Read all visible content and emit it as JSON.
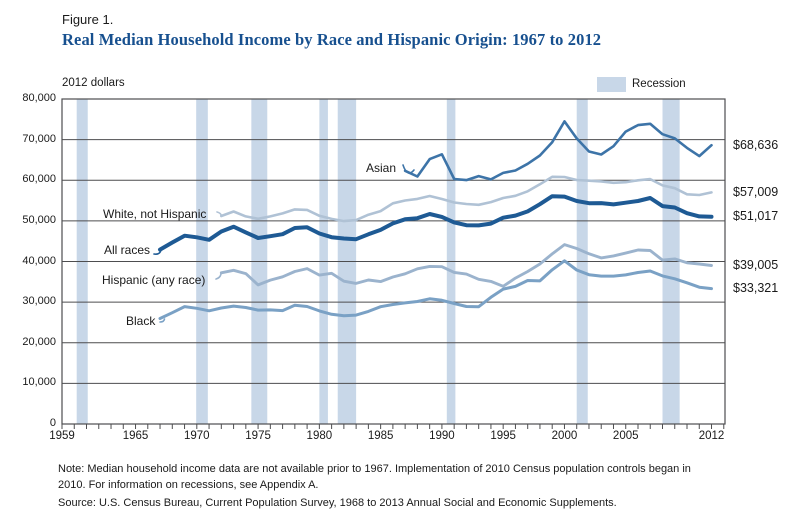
{
  "figure_label": "Figure 1.",
  "title": "Real Median Household Income by Race and Hispanic Origin: 1967 to 2012",
  "title_color": "#17508f",
  "units_label": "2012 dollars",
  "legend": {
    "recession_label": "Recession",
    "recession_color": "#c8d7e8"
  },
  "notes": {
    "note": "Note: Median household income data are not available prior to 1967. Implementation of 2010 Census population controls began in 2010. For information on recessions, see Appendix A.",
    "source": "Source: U.S. Census Bureau, Current Population Survey, 1968 to 2013 Annual Social and Economic Supplements."
  },
  "chart_data": {
    "type": "line",
    "title": "Real Median Household Income by Race and Hispanic Origin: 1967 to 2012",
    "ylabel": "2012 dollars",
    "xlim": [
      1959,
      2013.1
    ],
    "ylim": [
      0,
      80000
    ],
    "x_ticks": [
      1959,
      1965,
      1970,
      1975,
      1980,
      1985,
      1990,
      1995,
      2000,
      2005,
      2012
    ],
    "y_ticks": [
      0,
      10000,
      20000,
      30000,
      40000,
      50000,
      60000,
      70000,
      80000
    ],
    "y_tick_labels": [
      "0",
      "10,000",
      "20,000",
      "30,000",
      "40,000",
      "50,000",
      "60,000",
      "70,000",
      "80,000"
    ],
    "grid": true,
    "legend_position": "top-right",
    "axis_color": "#4d4d4f",
    "recessions": [
      [
        1960.2,
        1961.1
      ],
      [
        1969.95,
        1970.9
      ],
      [
        1974.45,
        1975.75
      ],
      [
        1980.0,
        1980.7
      ],
      [
        1981.5,
        1983.0
      ],
      [
        1990.4,
        1991.1
      ],
      [
        2001.0,
        2001.9
      ],
      [
        2008.0,
        2009.4
      ]
    ],
    "series": [
      {
        "key": "all_races",
        "label": "All races",
        "end_label": "$51,017",
        "end_value": 51017,
        "color": "#1e5a94",
        "start_year": 1967,
        "values": [
          42934,
          44669,
          46351,
          45946,
          45346,
          47391,
          48557,
          47165,
          45788,
          46226,
          46723,
          48244,
          48411,
          46885,
          45980,
          45673,
          45489,
          46686,
          47767,
          49377,
          50389,
          50664,
          51681,
          50979,
          49632,
          48937,
          48884,
          49340,
          50786,
          51306,
          52334,
          54110,
          56080,
          55987,
          54891,
          54360,
          54367,
          54058,
          54486,
          54892,
          55627,
          53644,
          53285,
          51892,
          51100,
          51017
        ]
      },
      {
        "key": "white_not_hispanic",
        "label": "White, not Hispanic",
        "end_label": "$57,009",
        "end_value": 57009,
        "color": "#b0c2d5",
        "start_year": 1972,
        "values": [
          51190,
          52319,
          51108,
          50521,
          51102,
          51837,
          52833,
          52710,
          51257,
          50481,
          49941,
          50184,
          51509,
          52412,
          54337,
          55007,
          55397,
          56112,
          55378,
          54528,
          54153,
          53968,
          54617,
          55634,
          56179,
          57280,
          58996,
          60849,
          60804,
          60064,
          59894,
          59718,
          59371,
          59524,
          60000,
          60289,
          58744,
          58045,
          56541,
          56369,
          57009
        ]
      },
      {
        "key": "asian",
        "label": "Asian",
        "end_label": "$68,636",
        "end_value": 68636,
        "color": "#3d74a8",
        "start_year": 1987,
        "values": [
          62323,
          60919,
          65214,
          66399,
          60311,
          60032,
          61017,
          60217,
          61814,
          62411,
          64037,
          66104,
          69360,
          74479,
          70303,
          67065,
          66329,
          68376,
          71971,
          73579,
          73900,
          71337,
          70306,
          67969,
          65951,
          68636
        ]
      },
      {
        "key": "hispanic",
        "label": "Hispanic (any race)",
        "end_label": "$39,005",
        "end_value": 39005,
        "color": "#9bb3cd",
        "start_year": 1972,
        "values": [
          37216,
          37826,
          37019,
          34242,
          35413,
          36231,
          37535,
          38255,
          36641,
          37089,
          35159,
          34620,
          35452,
          35045,
          36177,
          36964,
          38205,
          38805,
          38711,
          37308,
          36893,
          35621,
          35093,
          33904,
          35921,
          37546,
          39378,
          41860,
          44149,
          43203,
          41906,
          40883,
          41372,
          42077,
          42843,
          42701,
          40340,
          40632,
          39687,
          39396,
          39005
        ]
      },
      {
        "key": "black",
        "label": "Black",
        "end_label": "$33,321",
        "end_value": 33321,
        "color": "#7aa1c5",
        "start_year": 1967,
        "values": [
          25974,
          27398,
          28902,
          28485,
          27866,
          28560,
          29021,
          28670,
          28034,
          28086,
          27910,
          29222,
          28927,
          27834,
          27011,
          26642,
          26813,
          27710,
          28885,
          29421,
          29805,
          30150,
          30807,
          30439,
          29671,
          28935,
          28884,
          31181,
          33205,
          33868,
          35319,
          35213,
          37959,
          40162,
          37916,
          36745,
          36406,
          36398,
          36694,
          37292,
          37665,
          36466,
          35747,
          34752,
          33669,
          33321
        ]
      }
    ]
  }
}
